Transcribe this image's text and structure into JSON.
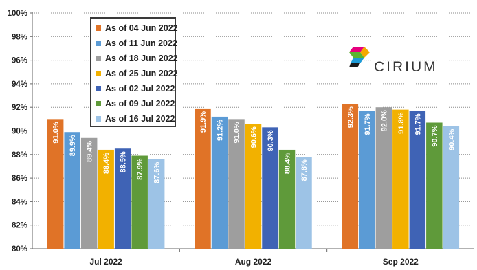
{
  "chart_data": {
    "type": "bar",
    "categories": [
      "Jul 2022",
      "Aug 2022",
      "Sep 2022"
    ],
    "series": [
      {
        "name": "As of 04 Jun 2022",
        "color": "#E07327",
        "values": [
          91.0,
          91.9,
          92.3
        ],
        "labels": [
          "91.0%",
          "91.9%",
          "92.3%"
        ]
      },
      {
        "name": "As of 11 Jun 2022",
        "color": "#5B9BD5",
        "values": [
          89.9,
          91.2,
          91.7
        ],
        "labels": [
          "89.9%",
          "91.2%",
          "91.7%"
        ]
      },
      {
        "name": "As of 18 Jun 2022",
        "color": "#9E9E9E",
        "values": [
          89.4,
          91.0,
          92.0
        ],
        "labels": [
          "89.4%",
          "91.0%",
          "92.0%"
        ]
      },
      {
        "name": "As of 25 Jun 2022",
        "color": "#F2B100",
        "values": [
          88.4,
          90.6,
          91.8
        ],
        "labels": [
          "88.4%",
          "90.6%",
          "91.8%"
        ]
      },
      {
        "name": "As of 02 Jul 2022",
        "color": "#3F63B5",
        "values": [
          88.5,
          90.3,
          91.7
        ],
        "labels": [
          "88.5%",
          "90.3%",
          "91.7%"
        ]
      },
      {
        "name": "As of 09 Jul 2022",
        "color": "#5F9A3A",
        "values": [
          87.9,
          88.4,
          90.7
        ],
        "labels": [
          "87.9%",
          "88.4%",
          "90.7%"
        ]
      },
      {
        "name": "As of 16 Jul 2022",
        "color": "#9DC3E6",
        "values": [
          87.6,
          87.8,
          90.4
        ],
        "labels": [
          "87.6%",
          "87.8%",
          "90.4%"
        ]
      }
    ],
    "ylim": [
      80,
      100
    ],
    "yticks": [
      "80%",
      "82%",
      "84%",
      "86%",
      "88%",
      "90%",
      "92%",
      "94%",
      "96%",
      "98%",
      "100%"
    ],
    "grid": "horizontal dotted",
    "legend_position": "top-left",
    "title": "",
    "xlabel": "",
    "ylabel": ""
  },
  "logo": {
    "text": "CIRIUM"
  }
}
